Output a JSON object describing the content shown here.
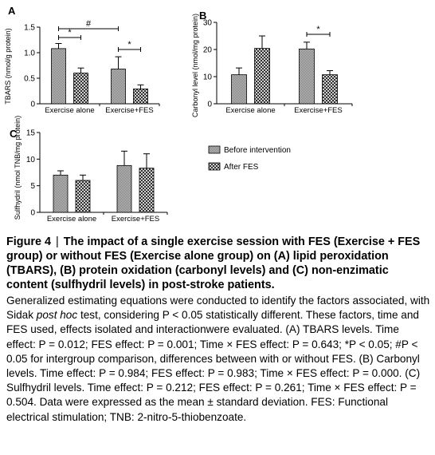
{
  "chart_data": [
    {
      "panel_letter": "A",
      "type": "bar",
      "ylabel": "TBARS (nmol/g protein)",
      "ylim": [
        0,
        1.5
      ],
      "yticks": [
        0,
        0.5,
        1.0,
        1.5
      ],
      "ytick_labels": [
        "0",
        "0.5",
        "1.0",
        "1.5"
      ],
      "categories": [
        "Exercise alone",
        "Exercise+FES"
      ],
      "series": [
        {
          "name": "Before intervention",
          "values": [
            1.08,
            0.68
          ],
          "errors": [
            0.1,
            0.24
          ]
        },
        {
          "name": "After FES",
          "values": [
            0.6,
            0.29
          ],
          "errors": [
            0.1,
            0.08
          ]
        }
      ],
      "brackets": [
        {
          "from": "Exercise alone|Before intervention",
          "to": "Exercise alone|After FES",
          "label": "*"
        },
        {
          "from": "Exercise alone|Before intervention",
          "to": "Exercise+FES|Before intervention",
          "label": "#"
        },
        {
          "from": "Exercise+FES|Before intervention",
          "to": "Exercise+FES|After FES",
          "label": "*"
        }
      ]
    },
    {
      "panel_letter": "B",
      "type": "bar",
      "ylabel": "Carbonyl level (nmol/mg protein)",
      "ylim": [
        0,
        30
      ],
      "yticks": [
        0,
        10,
        20,
        30
      ],
      "ytick_labels": [
        "0",
        "10",
        "20",
        "30"
      ],
      "categories": [
        "Exercise alone",
        "Exercise+FES"
      ],
      "series": [
        {
          "name": "Before intervention",
          "values": [
            10.7,
            20.2
          ],
          "errors": [
            2.5,
            2.5
          ]
        },
        {
          "name": "After FES",
          "values": [
            20.4,
            10.7
          ],
          "errors": [
            4.6,
            1.5
          ]
        }
      ],
      "brackets": [
        {
          "from": "Exercise+FES|Before intervention",
          "to": "Exercise+FES|After FES",
          "label": "*"
        }
      ]
    },
    {
      "panel_letter": "C",
      "type": "bar",
      "ylabel": "Sulfhydril (nmol TNB/mg protein)",
      "ylim": [
        0,
        15
      ],
      "yticks": [
        0,
        5,
        10,
        15
      ],
      "ytick_labels": [
        "0",
        "5",
        "10",
        "15"
      ],
      "categories": [
        "Exercise alone",
        "Exercise+FES"
      ],
      "series": [
        {
          "name": "Before intervention",
          "values": [
            7.0,
            8.8
          ],
          "errors": [
            0.8,
            2.7
          ]
        },
        {
          "name": "After FES",
          "values": [
            6.0,
            8.3
          ],
          "errors": [
            1.0,
            2.7
          ]
        }
      ],
      "brackets": []
    }
  ],
  "legend": [
    {
      "label": "Before intervention",
      "pattern": "dense-checker"
    },
    {
      "label": "After FES",
      "pattern": "cross-hatch"
    }
  ],
  "caption": {
    "figure_number": "Figure 4",
    "separator": "|",
    "title": "The impact of a single exercise session with FES (Exercise + FES group) or without FES (Exercise alone group) on (A) lipid peroxidation (TBARS), (B) protein oxidation (carbonyl levels) and (C) non-enzimatic content (sulfhydril levels) in post-stroke patients.",
    "body_1": "Generalized estimating equations were conducted to identify the factors associated, with Sidak ",
    "body_posthoc": "post hoc",
    "body_2": " test, considering P < 0.05 statistically different. These factors,  time and FES used,  effects isolated and interactionwere evaluated.  (A) TBARS levels. Time effect: P = 0.012; FES effect: P = 0.001; Time × FES effect: P = 0.643; *P < 0.05; #P < 0.05 for intergroup comparison, differences between with or without FES. (B) Carbonyl levels. Time effect: P = 0.984; FES effect: P = 0.983; Time × FES effect: P = 0.000. (C) Sulfhydril  levels. Time effect: P = 0.212; FES effect: P = 0.261; Time × FES effect: P = 0.504. Data were expressed as the mean ± standard deviation. FES: Functional electrical stimulation; TNB: 2-nitro-5-thiobenzoate."
  }
}
